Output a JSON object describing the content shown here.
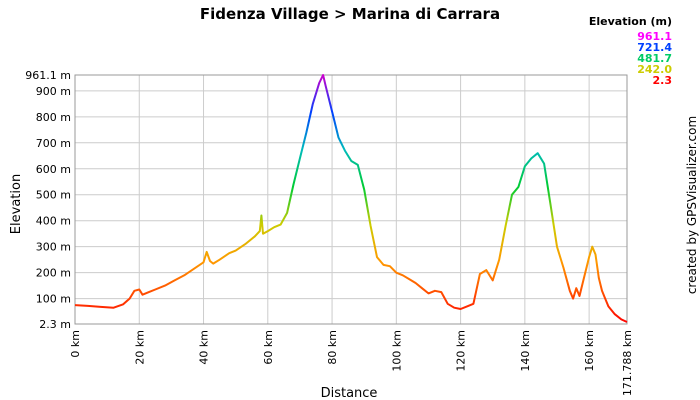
{
  "chart_data": {
    "type": "line",
    "title": "Fidenza Village > Marina di Carrara",
    "xlabel": "Distance",
    "ylabel": "Elevation",
    "xlim": [
      0,
      171.788
    ],
    "ylim": [
      2.3,
      961.1
    ],
    "x_unit": "km",
    "y_unit": "m",
    "x_ticks": [
      "0 km",
      "20 km",
      "40 km",
      "60 km",
      "80 km",
      "100 km",
      "120 km",
      "140 km",
      "160 km",
      "171.788 km"
    ],
    "x_tick_values": [
      0,
      20,
      40,
      60,
      80,
      100,
      120,
      140,
      160,
      171.788
    ],
    "y_ticks": [
      "2.3 m",
      "100 m",
      "200 m",
      "300 m",
      "400 m",
      "500 m",
      "600 m",
      "700 m",
      "800 m",
      "900 m",
      "961.1 m"
    ],
    "y_tick_values": [
      2.3,
      100,
      200,
      300,
      400,
      500,
      600,
      700,
      800,
      900,
      961.1
    ],
    "grid": true,
    "series": [
      {
        "x": [
          0,
          4,
          8,
          12,
          15,
          17,
          18.5,
          20,
          21,
          23,
          25,
          28,
          31,
          34,
          37,
          40,
          41,
          42,
          43,
          45,
          48,
          50,
          53,
          56,
          57.5,
          58,
          58.5,
          60,
          62,
          64,
          66,
          68,
          70,
          72,
          74,
          76,
          77.2,
          78,
          80,
          82,
          84,
          86,
          88,
          90,
          92,
          94,
          96,
          98,
          100,
          102,
          104,
          106,
          108,
          110,
          112,
          114,
          116,
          118,
          120,
          122,
          124,
          126,
          128,
          130,
          132,
          134,
          136,
          138,
          140,
          142,
          144,
          146,
          148,
          150,
          152,
          154,
          155,
          156,
          157,
          158,
          160,
          161,
          162,
          163,
          164,
          165,
          166,
          168,
          170,
          171.788
        ],
        "y": [
          75,
          72,
          68,
          65,
          78,
          100,
          130,
          135,
          115,
          125,
          135,
          150,
          170,
          190,
          215,
          240,
          280,
          245,
          235,
          250,
          275,
          285,
          310,
          340,
          360,
          420,
          350,
          360,
          375,
          385,
          430,
          540,
          640,
          740,
          850,
          930,
          961.1,
          920,
          820,
          720,
          670,
          630,
          615,
          520,
          380,
          260,
          230,
          225,
          200,
          190,
          175,
          160,
          140,
          120,
          130,
          125,
          80,
          65,
          60,
          70,
          80,
          195,
          210,
          170,
          250,
          380,
          500,
          530,
          610,
          640,
          660,
          620,
          460,
          300,
          220,
          130,
          100,
          140,
          110,
          160,
          260,
          300,
          270,
          180,
          130,
          100,
          70,
          40,
          20,
          10
        ]
      }
    ],
    "legend": {
      "title": "Elevation (m)",
      "placement": "top-right",
      "values": [
        "961.1",
        "721.4",
        "481.7",
        "242.0",
        "2.3"
      ],
      "colors": [
        "#ff00ff",
        "#0040ff",
        "#00cc66",
        "#cccc00",
        "#ff0000"
      ]
    },
    "credit": "created by GPSVisualizer.com",
    "grid_color": "#cccccc"
  }
}
